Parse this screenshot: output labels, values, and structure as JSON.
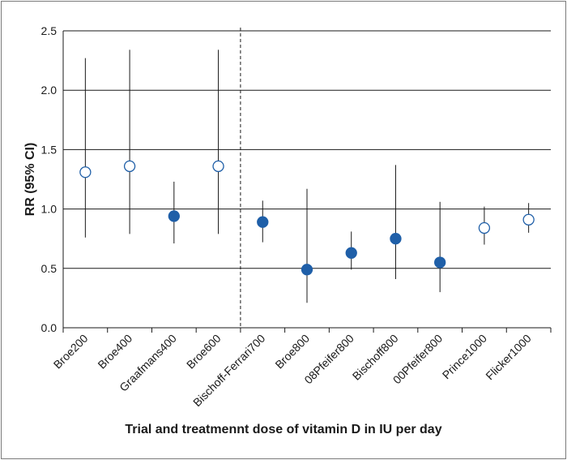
{
  "chart_data": {
    "type": "scatter",
    "title": "",
    "xlabel": "Trial and treatmennt dose of vitamin D in IU per day",
    "ylabel": "RR (95% CI)",
    "ylim": [
      0,
      2.5
    ],
    "yticks": [
      "0.0",
      "0.5",
      "1.0",
      "1.5",
      "2.0",
      "2.5"
    ],
    "grid": "horizontal",
    "marker_color": "#1f5fa8",
    "divider_after_index": 3,
    "divider_style": "dashed",
    "categories": [
      "Broe200",
      "Broe400",
      "Graafmans400",
      "Broe600",
      "Bischoff-Ferrari700",
      "Broe800",
      "08Pfeifer800",
      "Bischoff800",
      "00Pfeifer800",
      "Prince1000",
      "Flicker1000"
    ],
    "points": [
      {
        "label": "Broe200",
        "rr": 1.31,
        "lower": 0.76,
        "upper": 2.27,
        "filled": false
      },
      {
        "label": "Broe400",
        "rr": 1.36,
        "lower": 0.79,
        "upper": 2.34,
        "filled": false
      },
      {
        "label": "Graafmans400",
        "rr": 0.94,
        "lower": 0.71,
        "upper": 1.23,
        "filled": true
      },
      {
        "label": "Broe600",
        "rr": 1.36,
        "lower": 0.79,
        "upper": 2.34,
        "filled": false
      },
      {
        "label": "Bischoff-Ferrari700",
        "rr": 0.89,
        "lower": 0.72,
        "upper": 1.07,
        "filled": true
      },
      {
        "label": "Broe800",
        "rr": 0.49,
        "lower": 0.21,
        "upper": 1.17,
        "filled": true
      },
      {
        "label": "08Pfeifer800",
        "rr": 0.63,
        "lower": 0.49,
        "upper": 0.81,
        "filled": true
      },
      {
        "label": "Bischoff800",
        "rr": 0.75,
        "lower": 0.41,
        "upper": 1.37,
        "filled": true
      },
      {
        "label": "00Pfeifer800",
        "rr": 0.55,
        "lower": 0.3,
        "upper": 1.06,
        "filled": true
      },
      {
        "label": "Prince1000",
        "rr": 0.84,
        "lower": 0.7,
        "upper": 1.02,
        "filled": false
      },
      {
        "label": "Flicker1000",
        "rr": 0.91,
        "lower": 0.8,
        "upper": 1.05,
        "filled": false
      }
    ]
  }
}
